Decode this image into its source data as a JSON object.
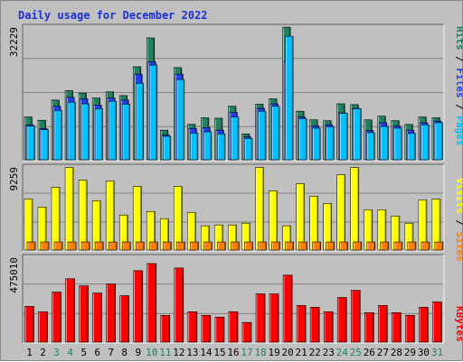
{
  "title": "Daily usage for December 2022",
  "colors": {
    "pages": "#00c0ff",
    "files": "#2040f0",
    "hits": "#208060",
    "sites": "#ff8000",
    "visits": "#ffff00",
    "kbytes": "#ff0000",
    "weekday_label": "#000000",
    "weekend_label": "#208060",
    "title": "#1a2fd6"
  },
  "chart_data": [
    {
      "type": "bar",
      "name": "hits-files-pages",
      "ymax_label": "32229",
      "ylim": [
        0,
        32229
      ],
      "side_labels": [
        "Pages",
        "Files",
        "Hits"
      ],
      "categories": [
        "1",
        "2",
        "3",
        "4",
        "5",
        "6",
        "7",
        "8",
        "9",
        "10",
        "11",
        "12",
        "13",
        "14",
        "15",
        "16",
        "17",
        "18",
        "19",
        "20",
        "21",
        "22",
        "23",
        "24",
        "25",
        "26",
        "27",
        "28",
        "29",
        "30",
        "31"
      ],
      "weekend": [
        3,
        4,
        10,
        11,
        17,
        18,
        24,
        25,
        31
      ],
      "series": [
        {
          "name": "Hits",
          "values": [
            10400,
            9600,
            14500,
            16800,
            16200,
            15000,
            16500,
            15600,
            22600,
            29600,
            7200,
            22400,
            8600,
            10200,
            10100,
            13000,
            6300,
            13500,
            14800,
            32200,
            11800,
            9700,
            9500,
            13600,
            13400,
            9700,
            10600,
            9500,
            8600,
            10400,
            10200
          ]
        },
        {
          "name": "Files",
          "values": [
            8500,
            7600,
            13000,
            15200,
            14800,
            13300,
            15000,
            14500,
            20800,
            23800,
            6000,
            20800,
            7600,
            7800,
            7200,
            11500,
            5600,
            12500,
            13600,
            24000,
            10400,
            8200,
            8500,
            11400,
            12500,
            7100,
            9000,
            8200,
            7200,
            9000,
            9400
          ]
        },
        {
          "name": "Pages",
          "values": [
            8200,
            7300,
            12000,
            14000,
            13600,
            12400,
            14200,
            13500,
            18600,
            23000,
            5700,
            19500,
            6500,
            6800,
            6300,
            10400,
            5200,
            11800,
            13000,
            30000,
            10000,
            7700,
            8000,
            11300,
            12400,
            6600,
            8100,
            7700,
            6400,
            8500,
            9000
          ]
        }
      ]
    },
    {
      "type": "bar",
      "name": "visits-sites",
      "ymax_label": "9259",
      "ylim": [
        0,
        9259
      ],
      "side_labels": [
        "Sites",
        "Visits"
      ],
      "categories": [
        "1",
        "2",
        "3",
        "4",
        "5",
        "6",
        "7",
        "8",
        "9",
        "10",
        "11",
        "12",
        "13",
        "14",
        "15",
        "16",
        "17",
        "18",
        "19",
        "20",
        "21",
        "22",
        "23",
        "24",
        "25",
        "26",
        "27",
        "28",
        "29",
        "30",
        "31"
      ],
      "series": [
        {
          "name": "Visits",
          "values": [
            5700,
            4800,
            7000,
            9200,
            7800,
            5500,
            7700,
            3900,
            7100,
            4300,
            3500,
            7100,
            4200,
            2700,
            2800,
            2800,
            3000,
            9200,
            6600,
            2700,
            7400,
            6000,
            5200,
            8400,
            9200,
            4500,
            4500,
            3800,
            3000,
            5600,
            5700
          ]
        },
        {
          "name": "Sites",
          "values": [
            900,
            900,
            900,
            900,
            900,
            900,
            900,
            900,
            900,
            900,
            900,
            900,
            900,
            900,
            900,
            900,
            900,
            900,
            900,
            900,
            900,
            900,
            900,
            900,
            900,
            900,
            900,
            900,
            900,
            900,
            900
          ]
        }
      ]
    },
    {
      "type": "bar",
      "name": "kbytes",
      "ymax_label": "475010",
      "ylim": [
        0,
        475010
      ],
      "side_labels": [
        "KBytes"
      ],
      "categories": [
        "1",
        "2",
        "3",
        "4",
        "5",
        "6",
        "7",
        "8",
        "9",
        "10",
        "11",
        "12",
        "13",
        "14",
        "15",
        "16",
        "17",
        "18",
        "19",
        "20",
        "21",
        "22",
        "23",
        "24",
        "25",
        "26",
        "27",
        "28",
        "29",
        "30",
        "31"
      ],
      "series": [
        {
          "name": "KBytes",
          "values": [
            200000,
            170000,
            280000,
            355000,
            315000,
            275000,
            325000,
            260000,
            400000,
            440000,
            150000,
            415000,
            170000,
            150000,
            140000,
            170000,
            110000,
            270000,
            270000,
            375000,
            205000,
            195000,
            170000,
            250000,
            290000,
            165000,
            205000,
            165000,
            150000,
            195000,
            225000
          ]
        }
      ]
    }
  ]
}
